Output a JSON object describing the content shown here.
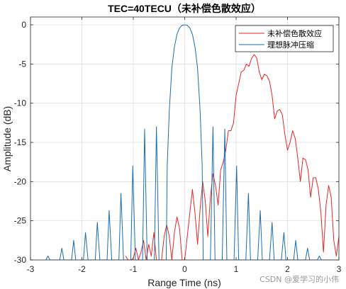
{
  "chart_data": {
    "type": "line",
    "title": "TEC=40TECU（未补偿色散效应）",
    "xlabel": "Range Time (ns)",
    "ylabel": "Amplitude (dB)",
    "xlim": [
      -3,
      3
    ],
    "ylim": [
      -30,
      1
    ],
    "xticks": [
      -3,
      -2,
      -1,
      0,
      1,
      2,
      3
    ],
    "yticks": [
      0,
      -5,
      -10,
      -15,
      -20,
      -25,
      -30
    ],
    "grid": true,
    "legend_position": "top-right",
    "series": [
      {
        "name": "未补偿色散效应",
        "color": "#e8262a",
        "x": [
          -1.15,
          -1.1,
          -1.05,
          -1.0,
          -0.95,
          -0.9,
          -0.85,
          -0.8,
          -0.75,
          -0.7,
          -0.65,
          -0.6,
          -0.55,
          -0.5,
          -0.45,
          -0.4,
          -0.35,
          -0.3,
          -0.25,
          -0.2,
          -0.15,
          -0.1,
          -0.05,
          0.0,
          0.05,
          0.1,
          0.15,
          0.2,
          0.25,
          0.3,
          0.35,
          0.4,
          0.45,
          0.5,
          0.55,
          0.6,
          0.65,
          0.7,
          0.75,
          0.8,
          0.85,
          0.9,
          0.95,
          1.0,
          1.05,
          1.1,
          1.15,
          1.2,
          1.25,
          1.3,
          1.35,
          1.4,
          1.45,
          1.5,
          1.55,
          1.6,
          1.65,
          1.7,
          1.75,
          1.8,
          1.85,
          1.9,
          1.95,
          2.0,
          2.05,
          2.1,
          2.15,
          2.2,
          2.25,
          2.3,
          2.35,
          2.4,
          2.45,
          2.5,
          2.55,
          2.6,
          2.65,
          2.7,
          2.75,
          2.8,
          2.85,
          2.9,
          2.95,
          3.0
        ],
        "values": [
          -29.5,
          -30,
          -30,
          -29.8,
          -28.5,
          -30,
          -29.0,
          -27.5,
          -30,
          -28.0,
          -29.5,
          -26.5,
          -30,
          -30,
          -30,
          -27.0,
          -25.5,
          -27.0,
          -30,
          -26.5,
          -24.5,
          -26.0,
          -30,
          -30,
          -27.0,
          -24.0,
          -21.0,
          -24.0,
          -28.0,
          -23.5,
          -20.0,
          -22.5,
          -27.0,
          -22.0,
          -19.0,
          -20.5,
          -23.0,
          -18.5,
          -17.5,
          -16.0,
          -13.5,
          -13.5,
          -12.5,
          -9.0,
          -7.5,
          -6.0,
          -5.8,
          -5.0,
          -5.3,
          -4.3,
          -3.8,
          -4.2,
          -6.0,
          -7.0,
          -6.3,
          -6.5,
          -7.2,
          -9.0,
          -12.0,
          -11.0,
          -10.8,
          -11.5,
          -14.0,
          -16.0,
          -15.0,
          -13.5,
          -14.5,
          -17.0,
          -20.0,
          -17.0,
          -17.2,
          -18.5,
          -22.0,
          -19.5,
          -19.5,
          -21.0,
          -24.0,
          -29.0,
          -23.0,
          -20.5,
          -22.0,
          -27.5,
          -29.5,
          -27.0
        ]
      },
      {
        "name": "理想脉冲压缩",
        "color": "#1a6fb0",
        "x": [
          -2.7,
          -2.66,
          -2.62,
          -2.43,
          -2.39,
          -2.35,
          -2.2,
          -2.16,
          -2.12,
          -1.97,
          -1.93,
          -1.88,
          -1.74,
          -1.7,
          -1.65,
          -1.51,
          -1.47,
          -1.42,
          -1.28,
          -1.24,
          -1.19,
          -1.05,
          -1.01,
          -0.96,
          -0.82,
          -0.78,
          -0.73,
          -0.59,
          -0.55,
          -0.5,
          -0.36,
          -0.34,
          -0.3,
          -0.25,
          -0.2,
          -0.15,
          -0.1,
          -0.05,
          0.0,
          0.05,
          0.1,
          0.15,
          0.2,
          0.25,
          0.3,
          0.34,
          0.36,
          0.5,
          0.55,
          0.59,
          0.73,
          0.78,
          0.82,
          0.96,
          1.01,
          1.05,
          1.19,
          1.24,
          1.28,
          1.42,
          1.47,
          1.51,
          1.65,
          1.7,
          1.74,
          1.88,
          1.93,
          1.97,
          2.12,
          2.16,
          2.2,
          2.35,
          2.39,
          2.43,
          2.58,
          2.62,
          2.66,
          2.81,
          2.85,
          2.89
        ],
        "values": [
          -30,
          -29.5,
          -30,
          -30,
          -28.5,
          -30,
          -30,
          -27.5,
          -30,
          -30,
          -26.5,
          -30,
          -30,
          -25.2,
          -30,
          -30,
          -23.7,
          -30,
          -30,
          -21.5,
          -30,
          -30,
          -18.0,
          -30,
          -30,
          -13.3,
          -30,
          -30,
          -13.0,
          -30,
          -30,
          -18.0,
          -11.0,
          -5.5,
          -2.8,
          -1.2,
          -0.4,
          -0.05,
          0.0,
          -0.05,
          -0.4,
          -1.2,
          -2.8,
          -5.5,
          -11.0,
          -18.0,
          -30,
          -30,
          -13.0,
          -30,
          -30,
          -13.3,
          -30,
          -30,
          -18.0,
          -30,
          -30,
          -21.5,
          -30,
          -30,
          -23.7,
          -30,
          -30,
          -25.2,
          -30,
          -30,
          -26.5,
          -30,
          -30,
          -27.5,
          -30,
          -30,
          -28.5,
          -30,
          -30,
          -29.5,
          -30,
          -30,
          -30.0,
          -30
        ]
      }
    ]
  },
  "watermark": "CSDN @爱学习的小伟"
}
